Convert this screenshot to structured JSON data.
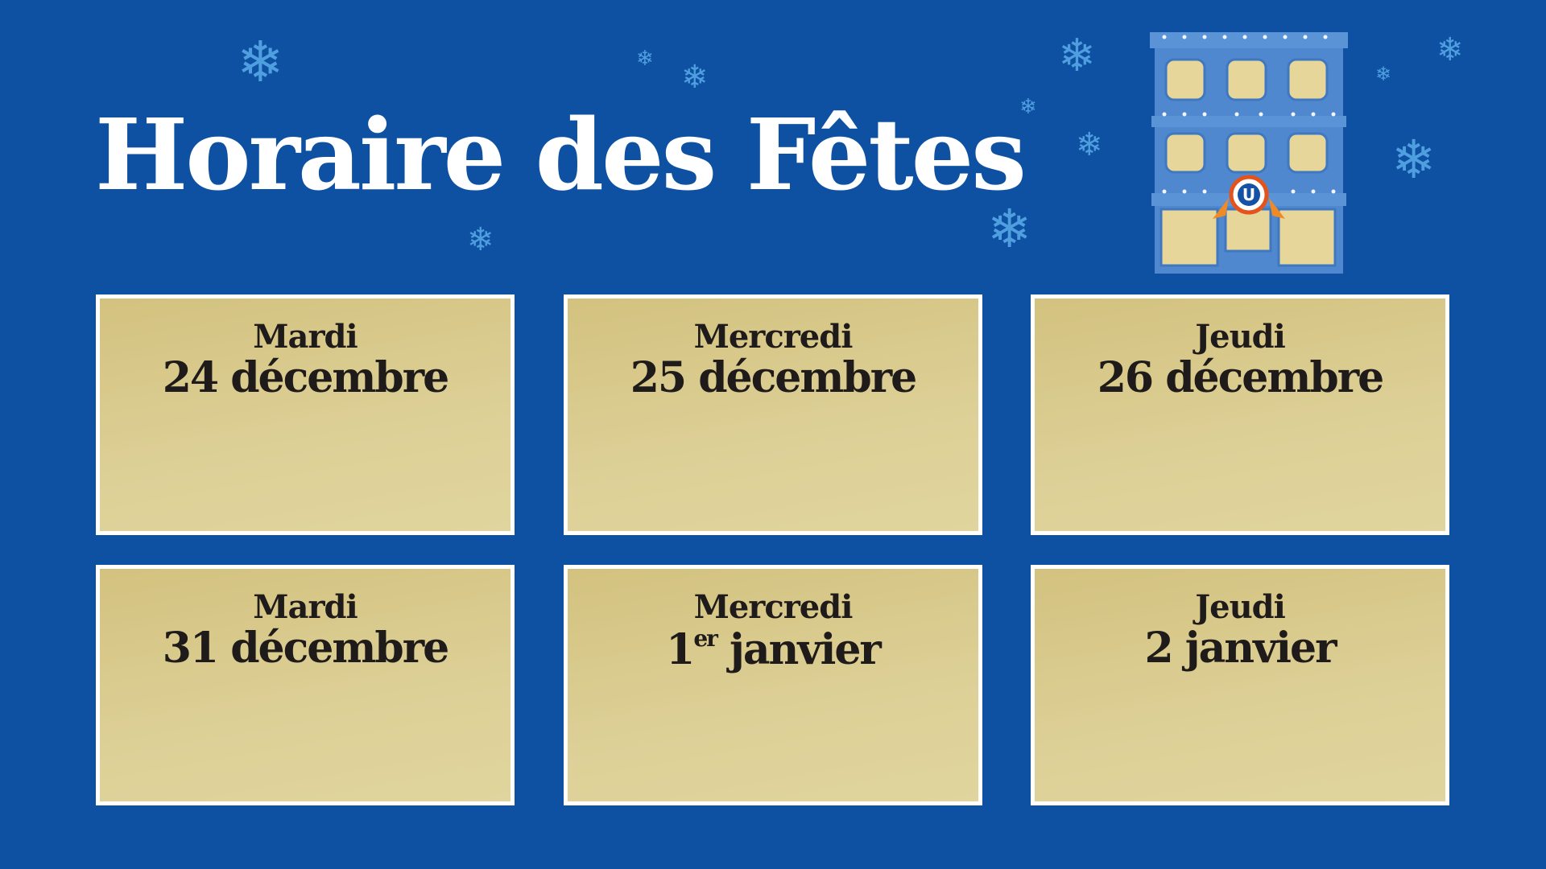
{
  "title": "Horaire des Fêtes",
  "logo_letter": "U",
  "colors": {
    "background": "#0e51a2",
    "card": "#d8c98a",
    "snowflake": "#4f9ee0"
  },
  "cards": [
    {
      "day": "Mardi",
      "date": "24 décembre"
    },
    {
      "day": "Mercredi",
      "date": "25 décembre"
    },
    {
      "day": "Jeudi",
      "date": "26 décembre"
    },
    {
      "day": "Mardi",
      "date": "31 décembre"
    },
    {
      "day": "Mercredi",
      "date_num": "1",
      "date_sup": "er",
      "date_rest": " janvier"
    },
    {
      "day": "Jeudi",
      "date": "2 janvier"
    }
  ]
}
